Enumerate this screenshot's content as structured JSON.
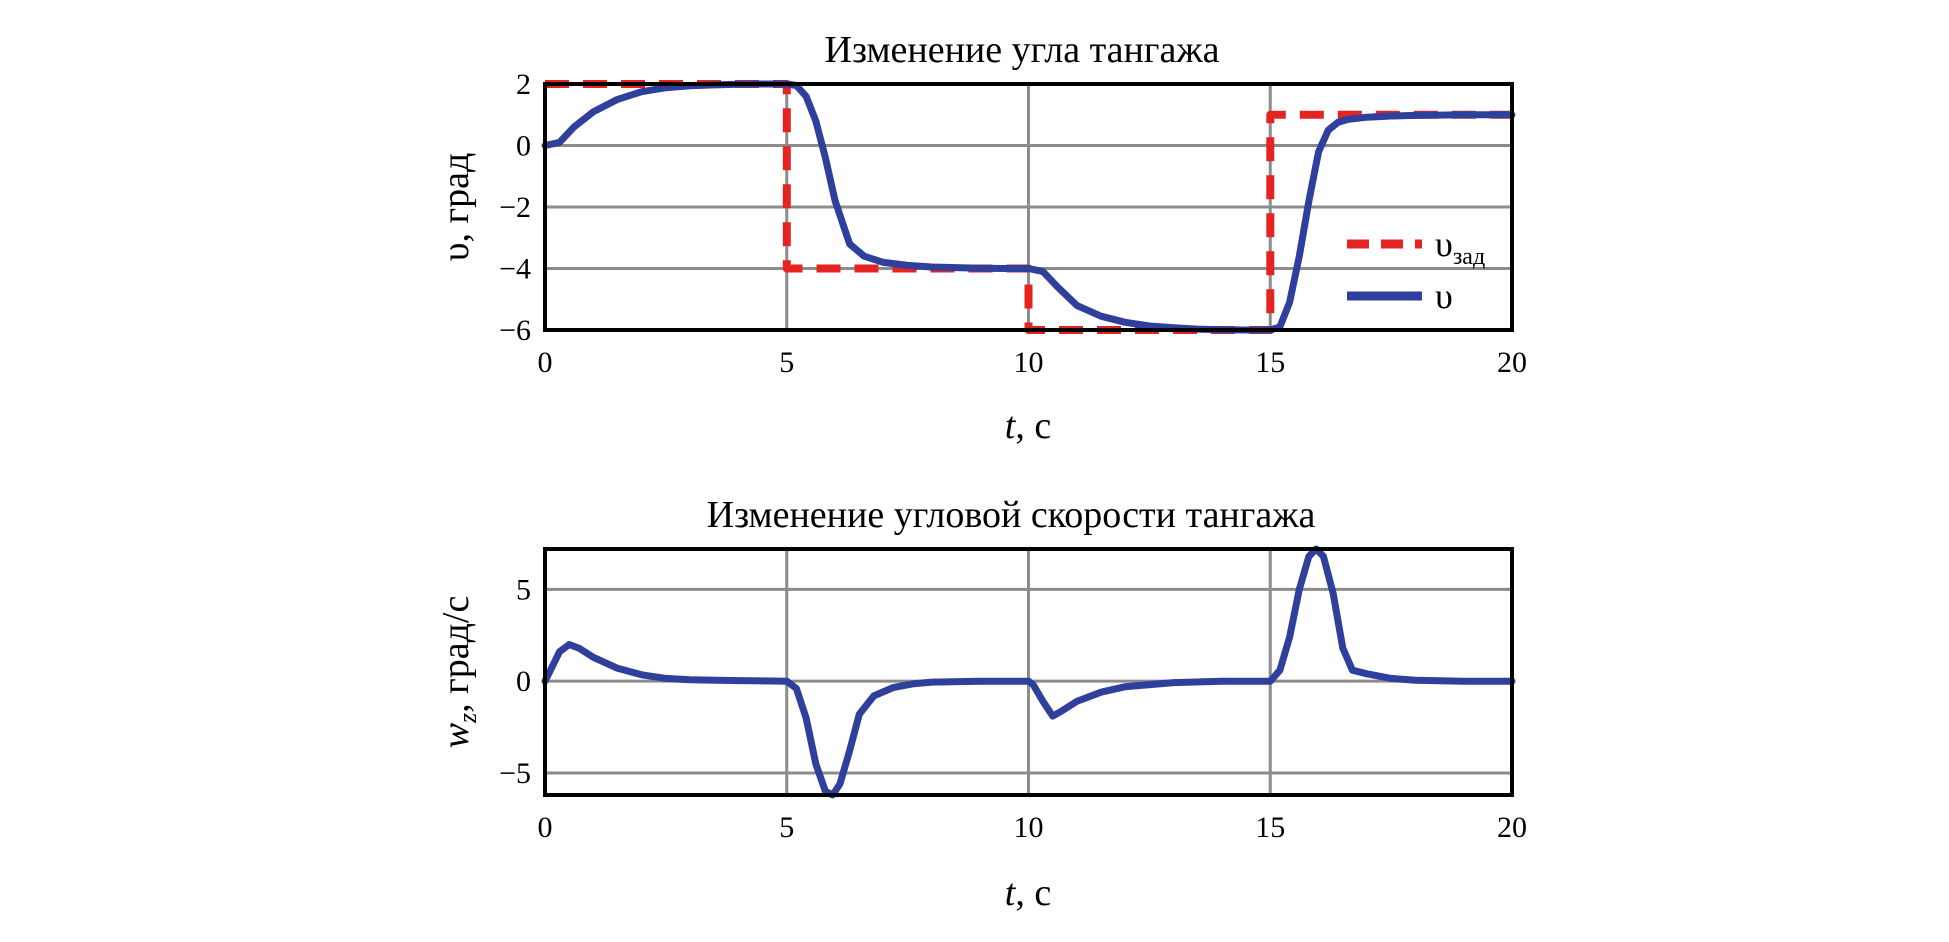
{
  "chart_data": [
    {
      "type": "line",
      "title": "Изменение угла тангажа",
      "xlabel_var": "t",
      "xlabel_unit": ", с",
      "ylabel": "υ, град",
      "xlim": [
        0,
        20
      ],
      "ylim": [
        -6,
        2
      ],
      "xticks": [
        "0",
        "5",
        "10",
        "15",
        "20"
      ],
      "yticks": [
        "2",
        "0",
        "−2",
        "−4",
        "−6"
      ],
      "ytick_values": [
        2,
        0,
        -2,
        -4,
        -6
      ],
      "grid": true,
      "legend_position": "right",
      "series": [
        {
          "name": "υ",
          "name_sub": "зад",
          "style": "dashed",
          "color": "#e52421",
          "x": [
            0,
            5,
            5,
            10,
            10,
            15,
            15,
            20
          ],
          "y": [
            2,
            2,
            -4,
            -4,
            -6,
            -6,
            1,
            1
          ]
        },
        {
          "name": "υ",
          "style": "solid",
          "color": "#2e3f9c",
          "x": [
            0,
            0.3,
            0.6,
            1,
            1.5,
            2,
            2.5,
            3,
            3.5,
            4,
            4.5,
            5,
            5.2,
            5.4,
            5.6,
            5.8,
            6,
            6.3,
            6.6,
            7,
            7.5,
            8,
            8.5,
            9,
            9.5,
            10,
            10.3,
            10.6,
            11,
            11.5,
            12,
            12.5,
            13,
            13.5,
            14,
            14.5,
            15,
            15.2,
            15.4,
            15.6,
            15.8,
            16,
            16.2,
            16.4,
            16.6,
            17,
            17.5,
            18,
            18.5,
            19,
            19.5,
            20
          ],
          "y": [
            0,
            0.1,
            0.6,
            1.1,
            1.5,
            1.75,
            1.88,
            1.94,
            1.97,
            1.99,
            2,
            2,
            1.95,
            1.6,
            0.8,
            -0.4,
            -1.8,
            -3.2,
            -3.6,
            -3.8,
            -3.9,
            -3.95,
            -3.97,
            -3.99,
            -4,
            -4,
            -4.1,
            -4.6,
            -5.2,
            -5.55,
            -5.75,
            -5.87,
            -5.93,
            -5.97,
            -5.99,
            -6,
            -6,
            -5.9,
            -5.1,
            -3.6,
            -1.8,
            -0.2,
            0.5,
            0.75,
            0.85,
            0.92,
            0.96,
            0.98,
            0.99,
            1,
            1,
            1
          ]
        }
      ]
    },
    {
      "type": "line",
      "title": "Изменение угловой скорости тангажа",
      "xlabel_var": "t",
      "xlabel_unit": ", с",
      "ylabel_var": "w",
      "ylabel_sub": "z",
      "ylabel_unit": ", град/с",
      "xlim": [
        0,
        20
      ],
      "ylim": [
        -6.2,
        7.2
      ],
      "xticks": [
        "0",
        "5",
        "10",
        "15",
        "20"
      ],
      "yticks": [
        "5",
        "0",
        "−5"
      ],
      "ytick_values": [
        5,
        0,
        -5
      ],
      "grid": true,
      "series": [
        {
          "style": "solid",
          "color": "#2e3f9c",
          "x": [
            0,
            0.15,
            0.3,
            0.5,
            0.7,
            1,
            1.5,
            2,
            2.5,
            3,
            4,
            5,
            5.2,
            5.4,
            5.6,
            5.8,
            5.95,
            6.1,
            6.3,
            6.5,
            6.8,
            7.2,
            7.6,
            8,
            9,
            10,
            10.1,
            10.3,
            10.5,
            10.7,
            11,
            11.5,
            12,
            13,
            14,
            15,
            15.2,
            15.4,
            15.6,
            15.8,
            15.95,
            16.1,
            16.3,
            16.5,
            16.7,
            17,
            17.5,
            18,
            19,
            20
          ],
          "y": [
            0,
            0.8,
            1.6,
            2.0,
            1.8,
            1.3,
            0.7,
            0.35,
            0.15,
            0.08,
            0.03,
            0,
            -0.4,
            -2,
            -4.5,
            -6,
            -6.2,
            -5.6,
            -3.8,
            -1.8,
            -0.8,
            -0.35,
            -0.15,
            -0.05,
            0,
            0,
            -0.2,
            -1.1,
            -1.9,
            -1.6,
            -1.1,
            -0.6,
            -0.3,
            -0.08,
            0,
            0,
            0.6,
            2.4,
            5,
            6.8,
            7.2,
            6.8,
            4.8,
            1.8,
            0.6,
            0.4,
            0.15,
            0.05,
            0,
            0
          ]
        }
      ]
    }
  ]
}
